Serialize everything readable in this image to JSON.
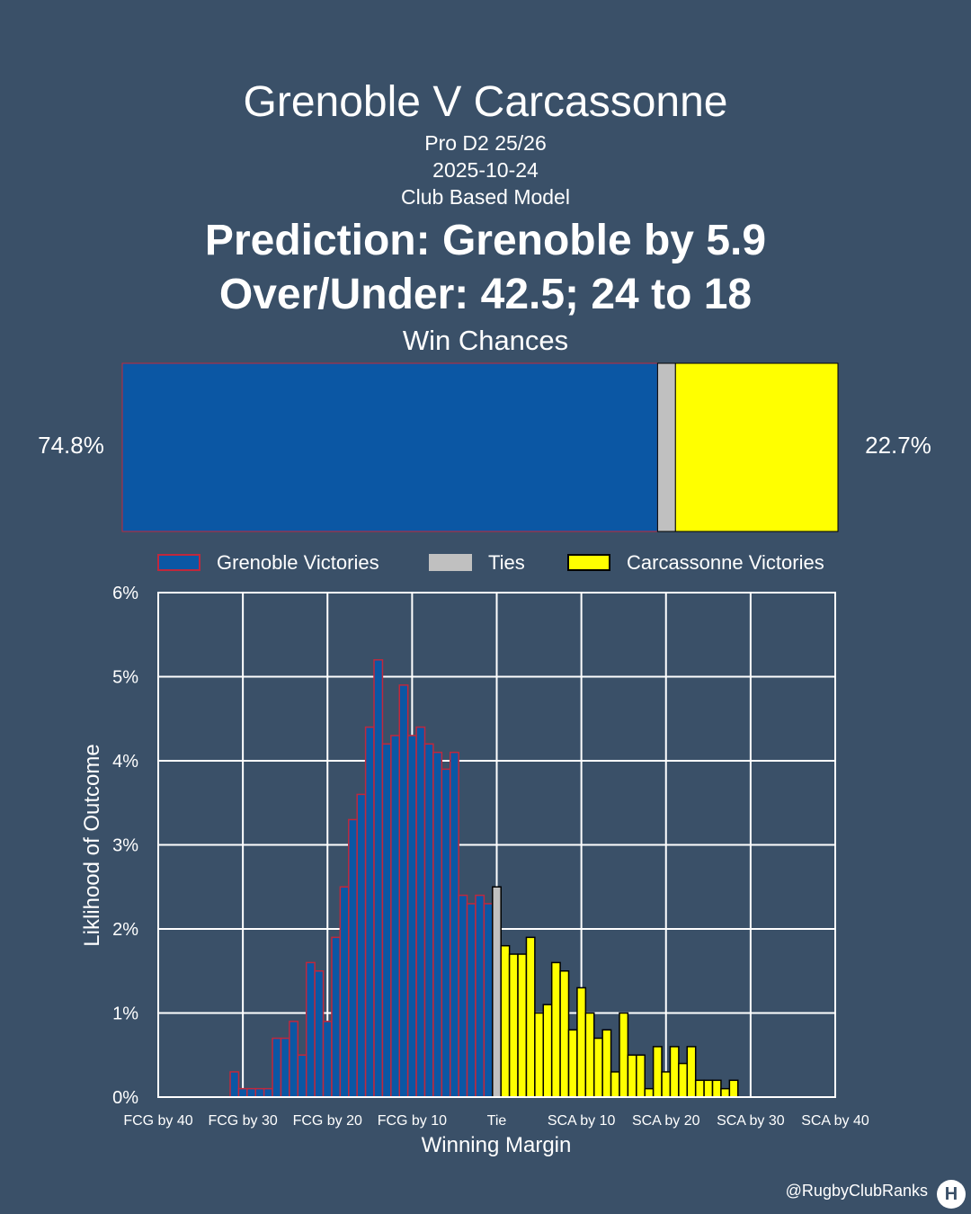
{
  "header": {
    "title": "Grenoble V Carcassonne",
    "league": "Pro D2 25/26",
    "date": "2025-10-24",
    "model": "Club Based Model",
    "prediction": "Prediction: Grenoble by 5.9",
    "over_under": "Over/Under: 42.5; 24 to 18",
    "win_chances_label": "Win Chances"
  },
  "win_chances": {
    "home_pct_label": "74.8%",
    "away_pct_label": "22.7%",
    "home": 74.8,
    "tie": 2.5,
    "away": 22.7
  },
  "colors": {
    "background": "#3a5068",
    "home_fill": "#0b57a4",
    "home_edge": "#c0283c",
    "tie_fill": "#c0c0c0",
    "away_fill": "#ffff00",
    "away_edge": "#000000"
  },
  "chart_data": {
    "type": "bar",
    "xlabel": "Winning Margin",
    "ylabel": "Liklihood of Outcome",
    "legend": [
      "Grenoble Victories",
      "Ties",
      "Carcassonne Victories"
    ],
    "legend_position": "top",
    "grid": true,
    "xlim": [
      -40,
      40
    ],
    "ylim": [
      0,
      6
    ],
    "x_ticks": [
      -40,
      -30,
      -20,
      -10,
      0,
      10,
      20,
      30,
      40
    ],
    "x_tick_labels": [
      "FCG by 40",
      "FCG by 30",
      "FCG by 20",
      "FCG by 10",
      "Tie",
      "SCA by 10",
      "SCA by 20",
      "SCA by 30",
      "SCA by 40"
    ],
    "y_ticks": [
      0,
      1,
      2,
      3,
      4,
      5,
      6
    ],
    "y_tick_labels": [
      "0%",
      "1%",
      "2%",
      "3%",
      "4%",
      "5%",
      "6%"
    ],
    "series": [
      {
        "name": "Grenoble Victories",
        "x": [
          -31,
          -30,
          -29,
          -28,
          -27,
          -26,
          -25,
          -24,
          -23,
          -22,
          -21,
          -20,
          -19,
          -18,
          -17,
          -16,
          -15,
          -14,
          -13,
          -12,
          -11,
          -10,
          -9,
          -8,
          -7,
          -6,
          -5,
          -4,
          -3,
          -2,
          -1
        ],
        "values": [
          0.3,
          0.1,
          0.1,
          0.1,
          0.1,
          0.7,
          0.7,
          0.9,
          0.5,
          1.6,
          1.5,
          0.9,
          1.9,
          2.5,
          3.3,
          3.6,
          4.4,
          5.2,
          4.2,
          4.3,
          4.9,
          4.3,
          4.4,
          4.2,
          4.1,
          3.9,
          4.1,
          2.4,
          2.3,
          2.4,
          2.3
        ]
      },
      {
        "name": "Ties",
        "x": [
          0
        ],
        "values": [
          2.5
        ]
      },
      {
        "name": "Carcassonne Victories",
        "x": [
          1,
          2,
          3,
          4,
          5,
          6,
          7,
          8,
          9,
          10,
          11,
          12,
          13,
          14,
          15,
          16,
          17,
          18,
          19,
          20,
          21,
          22,
          23,
          24,
          25,
          26,
          27,
          28
        ],
        "values": [
          1.8,
          1.7,
          1.7,
          1.9,
          1.0,
          1.1,
          1.6,
          1.5,
          0.8,
          1.3,
          1.0,
          0.7,
          0.8,
          0.3,
          1.0,
          0.5,
          0.5,
          0.1,
          0.6,
          0.3,
          0.6,
          0.4,
          0.6,
          0.2,
          0.2,
          0.2,
          0.1,
          0.2
        ]
      }
    ]
  },
  "footer": {
    "handle": "@RugbyClubRanks",
    "logo_glyph": "H"
  }
}
